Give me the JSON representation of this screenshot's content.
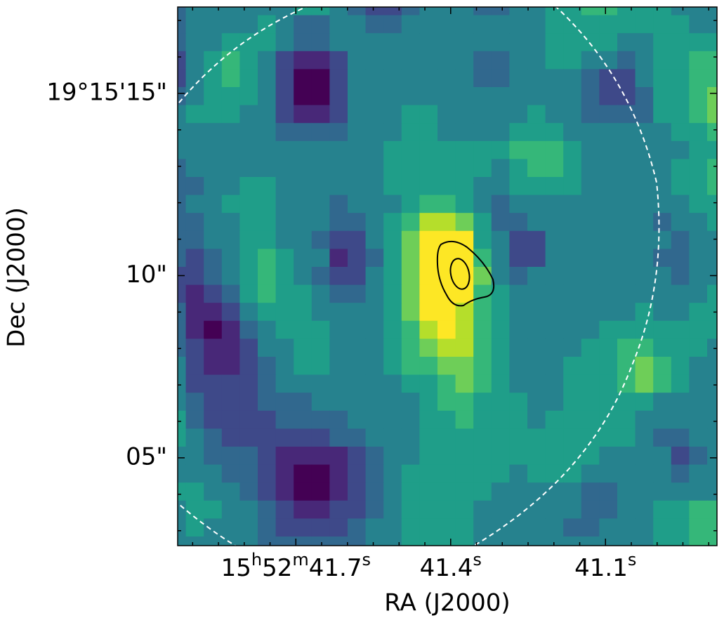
{
  "chart_data": {
    "type": "heatmap",
    "colormap": "viridis",
    "clim": [
      0,
      9
    ],
    "xlabel": "RA (J2000)",
    "ylabel": "Dec (J2000)",
    "xlim": [
      41.929,
      40.884
    ],
    "ylim": [
      2.59,
      17.37
    ],
    "xticks": [
      {
        "value": 41.7,
        "label": "15h52m41.7s"
      },
      {
        "value": 41.4,
        "label": "41.4s"
      },
      {
        "value": 41.1,
        "label": "41.1s"
      }
    ],
    "yticks": [
      {
        "value": 15,
        "label": "19°15'15\""
      },
      {
        "value": 10,
        "label": "10\""
      },
      {
        "value": 5,
        "label": "05\""
      }
    ],
    "xminorticks": [
      41.9,
      41.85,
      41.8,
      41.75,
      41.65,
      41.6,
      41.55,
      41.5,
      41.45,
      41.35,
      41.3,
      41.25,
      41.2,
      41.15,
      41.05,
      41.0,
      40.95,
      40.9
    ],
    "yminorticks": [
      3,
      4,
      6,
      7,
      8,
      9,
      11,
      12,
      13,
      14,
      16,
      17
    ],
    "values": [
      [
        3,
        4,
        4,
        4,
        4,
        4,
        4,
        5,
        5,
        4,
        3,
        2,
        2,
        3,
        4,
        4,
        4,
        3,
        3,
        4,
        4,
        5,
        5,
        6,
        6,
        5,
        5,
        5,
        4,
        4,
        4
      ],
      [
        3,
        4,
        4,
        4,
        4,
        5,
        4,
        3,
        3,
        4,
        4,
        3,
        3,
        4,
        4,
        4,
        4,
        4,
        4,
        4,
        4,
        5,
        5,
        5,
        5,
        5,
        5,
        5,
        5,
        4,
        4
      ],
      [
        3,
        4,
        4,
        5,
        5,
        5,
        4,
        3,
        3,
        4,
        4,
        4,
        4,
        4,
        4,
        4,
        4,
        4,
        4,
        4,
        4,
        5,
        5,
        5,
        5,
        4,
        4,
        5,
        5,
        5,
        5
      ],
      [
        2,
        4,
        5,
        6,
        5,
        4,
        2,
        1,
        1,
        2,
        4,
        4,
        4,
        4,
        4,
        4,
        4,
        3,
        3,
        4,
        4,
        5,
        5,
        4,
        4,
        3,
        4,
        5,
        5,
        6,
        6
      ],
      [
        2,
        4,
        5,
        6,
        5,
        4,
        2,
        0,
        0,
        2,
        4,
        4,
        4,
        4,
        4,
        4,
        4,
        3,
        3,
        4,
        4,
        4,
        4,
        3,
        2,
        2,
        4,
        5,
        5,
        6,
        6
      ],
      [
        3,
        4,
        5,
        5,
        5,
        4,
        2,
        0,
        0,
        2,
        4,
        4,
        4,
        4,
        4,
        4,
        4,
        4,
        4,
        4,
        4,
        4,
        4,
        3,
        2,
        2,
        3,
        5,
        5,
        6,
        7
      ],
      [
        4,
        5,
        5,
        5,
        4,
        4,
        2,
        1,
        1,
        2,
        4,
        4,
        4,
        5,
        5,
        4,
        4,
        4,
        4,
        4,
        5,
        4,
        4,
        3,
        3,
        3,
        3,
        5,
        5,
        6,
        7
      ],
      [
        4,
        4,
        4,
        4,
        4,
        4,
        3,
        3,
        3,
        3,
        4,
        4,
        4,
        5,
        5,
        4,
        4,
        4,
        4,
        5,
        5,
        5,
        4,
        4,
        4,
        4,
        4,
        4,
        5,
        5,
        6
      ],
      [
        4,
        4,
        4,
        4,
        4,
        4,
        4,
        4,
        4,
        4,
        4,
        4,
        5,
        5,
        5,
        5,
        5,
        5,
        5,
        6,
        6,
        6,
        5,
        4,
        4,
        4,
        4,
        4,
        4,
        5,
        5
      ],
      [
        3,
        4,
        4,
        4,
        4,
        4,
        4,
        4,
        4,
        4,
        4,
        4,
        5,
        5,
        5,
        5,
        5,
        5,
        4,
        5,
        6,
        6,
        5,
        4,
        4,
        4,
        4,
        4,
        5,
        5,
        6
      ],
      [
        3,
        3,
        4,
        4,
        5,
        5,
        4,
        4,
        4,
        4,
        4,
        4,
        5,
        5,
        5,
        5,
        5,
        4,
        4,
        5,
        5,
        5,
        5,
        4,
        4,
        4,
        4,
        4,
        5,
        5,
        6
      ],
      [
        3,
        4,
        4,
        5,
        5,
        5,
        4,
        4,
        4,
        3,
        4,
        4,
        4,
        5,
        6,
        6,
        5,
        4,
        3,
        4,
        4,
        4,
        4,
        4,
        4,
        4,
        4,
        4,
        4,
        5,
        5
      ],
      [
        3,
        3,
        4,
        4,
        5,
        5,
        4,
        4,
        4,
        3,
        3,
        4,
        5,
        6,
        8,
        8,
        7,
        5,
        3,
        3,
        4,
        4,
        4,
        4,
        4,
        4,
        4,
        3,
        4,
        4,
        5
      ],
      [
        3,
        3,
        4,
        4,
        5,
        5,
        4,
        4,
        3,
        2,
        2,
        4,
        5,
        7,
        9,
        9,
        9,
        5,
        4,
        2,
        2,
        4,
        4,
        4,
        4,
        4,
        4,
        4,
        3,
        4,
        4
      ],
      [
        3,
        2,
        3,
        4,
        5,
        6,
        5,
        4,
        4,
        1,
        2,
        3,
        5,
        7,
        9,
        9,
        9,
        6,
        4,
        2,
        2,
        4,
        4,
        4,
        4,
        4,
        4,
        3,
        3,
        4,
        4
      ],
      [
        2,
        2,
        3,
        4,
        5,
        6,
        5,
        4,
        3,
        2,
        2,
        4,
        5,
        7,
        9,
        9,
        9,
        7,
        4,
        3,
        4,
        4,
        4,
        4,
        4,
        4,
        4,
        4,
        3,
        4,
        4
      ],
      [
        2,
        1,
        2,
        3,
        5,
        6,
        5,
        5,
        4,
        3,
        3,
        4,
        5,
        7,
        9,
        9,
        9,
        6,
        5,
        4,
        4,
        4,
        4,
        4,
        4,
        4,
        4,
        4,
        4,
        4,
        5
      ],
      [
        3,
        1,
        1,
        2,
        4,
        5,
        5,
        5,
        4,
        4,
        4,
        4,
        5,
        7,
        9,
        9,
        8,
        6,
        5,
        4,
        4,
        4,
        4,
        4,
        4,
        4,
        5,
        4,
        4,
        5,
        5
      ],
      [
        3,
        1,
        0,
        1,
        3,
        4,
        5,
        5,
        5,
        4,
        4,
        4,
        5,
        6,
        8,
        9,
        8,
        6,
        5,
        4,
        4,
        4,
        4,
        4,
        5,
        5,
        5,
        5,
        5,
        5,
        5
      ],
      [
        3,
        2,
        1,
        1,
        2,
        4,
        4,
        5,
        5,
        4,
        4,
        4,
        5,
        6,
        7,
        8,
        8,
        6,
        5,
        4,
        4,
        4,
        4,
        5,
        5,
        6,
        6,
        5,
        5,
        5,
        4
      ],
      [
        4,
        2,
        1,
        1,
        2,
        3,
        4,
        5,
        5,
        4,
        4,
        4,
        5,
        6,
        6,
        7,
        7,
        6,
        5,
        4,
        4,
        4,
        5,
        5,
        5,
        6,
        7,
        6,
        5,
        4,
        4
      ],
      [
        4,
        2,
        2,
        2,
        2,
        3,
        4,
        4,
        4,
        4,
        4,
        4,
        4,
        5,
        5,
        6,
        7,
        6,
        5,
        4,
        4,
        4,
        5,
        5,
        5,
        6,
        7,
        6,
        5,
        4,
        4
      ],
      [
        4,
        3,
        2,
        2,
        2,
        3,
        3,
        3,
        4,
        4,
        4,
        4,
        4,
        4,
        5,
        6,
        6,
        5,
        5,
        5,
        4,
        4,
        5,
        5,
        5,
        5,
        5,
        4,
        4,
        4,
        4
      ],
      [
        5,
        3,
        2,
        2,
        2,
        2,
        3,
        3,
        3,
        3,
        4,
        4,
        4,
        4,
        5,
        5,
        6,
        5,
        5,
        5,
        4,
        5,
        5,
        5,
        5,
        5,
        4,
        4,
        4,
        4,
        4
      ],
      [
        5,
        4,
        3,
        2,
        2,
        2,
        2,
        2,
        2,
        3,
        3,
        4,
        4,
        4,
        5,
        5,
        5,
        5,
        5,
        5,
        5,
        5,
        5,
        5,
        5,
        5,
        4,
        3,
        3,
        4,
        4
      ],
      [
        4,
        4,
        3,
        3,
        3,
        2,
        1,
        1,
        1,
        1,
        2,
        3,
        4,
        4,
        5,
        5,
        5,
        5,
        5,
        5,
        5,
        5,
        5,
        5,
        4,
        4,
        4,
        4,
        2,
        3,
        4
      ],
      [
        4,
        4,
        4,
        3,
        3,
        2,
        1,
        0,
        0,
        1,
        2,
        3,
        4,
        5,
        5,
        5,
        5,
        5,
        5,
        4,
        5,
        5,
        5,
        4,
        4,
        4,
        4,
        4,
        3,
        4,
        4
      ],
      [
        5,
        5,
        4,
        4,
        3,
        2,
        1,
        0,
        0,
        1,
        2,
        3,
        4,
        5,
        5,
        5,
        5,
        5,
        4,
        4,
        4,
        4,
        4,
        3,
        3,
        4,
        4,
        4,
        4,
        4,
        4
      ],
      [
        4,
        5,
        5,
        4,
        4,
        3,
        2,
        1,
        1,
        2,
        2,
        3,
        4,
        5,
        5,
        5,
        5,
        4,
        4,
        4,
        4,
        4,
        4,
        3,
        3,
        4,
        4,
        5,
        5,
        6,
        6
      ],
      [
        4,
        5,
        4,
        4,
        4,
        3,
        2,
        2,
        2,
        2,
        3,
        4,
        4,
        5,
        5,
        5,
        5,
        4,
        4,
        4,
        4,
        4,
        3,
        3,
        4,
        4,
        4,
        5,
        5,
        6,
        6
      ],
      [
        4,
        4,
        4,
        4,
        4,
        3,
        3,
        3,
        3,
        3,
        3,
        4,
        4,
        5,
        5,
        5,
        5,
        4,
        4,
        4,
        4,
        4,
        4,
        4,
        4,
        4,
        4,
        5,
        5,
        6,
        6
      ]
    ]
  }
}
